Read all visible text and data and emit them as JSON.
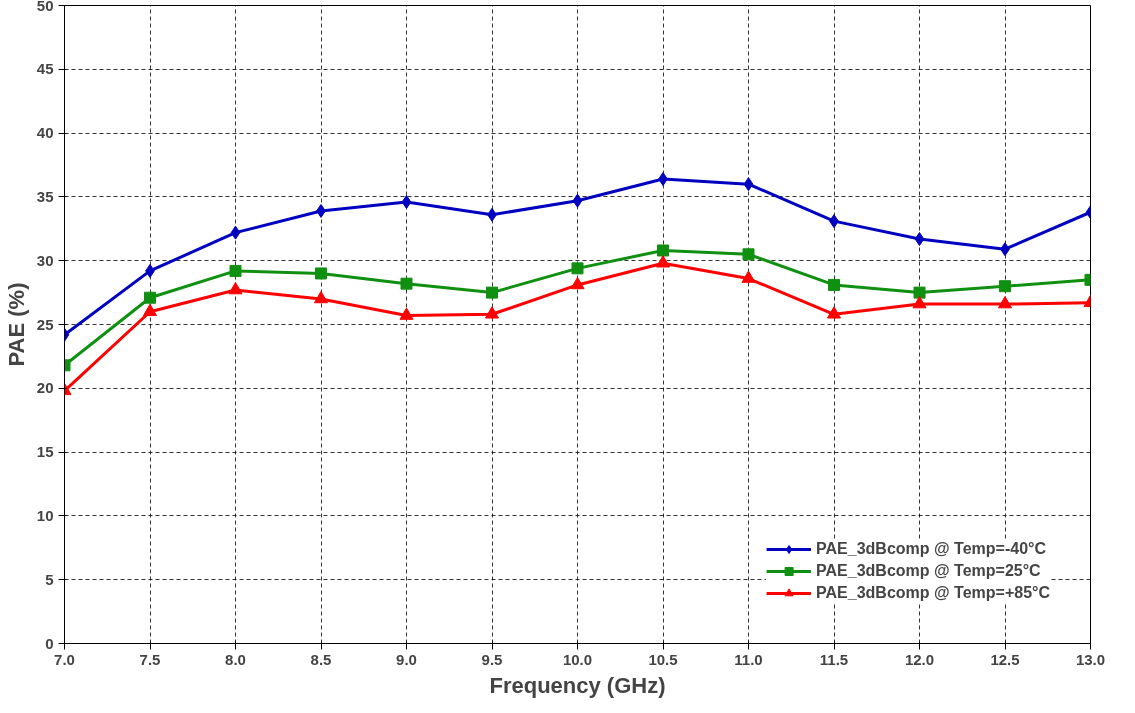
{
  "chart_data": {
    "type": "line",
    "xlabel": "Frequency (GHz)",
    "ylabel": "PAE (%)",
    "x": [
      7.0,
      7.5,
      8.0,
      8.5,
      9.0,
      9.5,
      10.0,
      10.5,
      11.0,
      11.5,
      12.0,
      12.5,
      13.0
    ],
    "xlim": [
      7.0,
      13.0
    ],
    "xticks": [
      {
        "value": 7.0,
        "label": "7.0"
      },
      {
        "value": 7.5,
        "label": "7.5"
      },
      {
        "value": 8.0,
        "label": "8.0"
      },
      {
        "value": 8.5,
        "label": "8.5"
      },
      {
        "value": 9.0,
        "label": "9.0"
      },
      {
        "value": 9.5,
        "label": "9.5"
      },
      {
        "value": 10.0,
        "label": "10.0"
      },
      {
        "value": 10.5,
        "label": "10.5"
      },
      {
        "value": 11.0,
        "label": "11.0"
      },
      {
        "value": 11.5,
        "label": "11.5"
      },
      {
        "value": 12.0,
        "label": "12.0"
      },
      {
        "value": 12.5,
        "label": "12.5"
      },
      {
        "value": 13.0,
        "label": "13.0"
      }
    ],
    "ylim": [
      0,
      50
    ],
    "yticks": [
      0,
      5,
      10,
      15,
      20,
      25,
      30,
      35,
      40,
      45,
      50
    ],
    "grid": true,
    "legend": "bottom right",
    "line_style": "solid",
    "series": [
      {
        "name": "PAE_3dBcomp @ Temp=-40°C",
        "color": "#0000c0",
        "marker": "diamond",
        "values": [
          24.2,
          29.2,
          32.2,
          33.9,
          34.6,
          33.6,
          34.7,
          36.4,
          36.0,
          33.1,
          31.7,
          30.9,
          33.8
        ]
      },
      {
        "name": "PAE_3dBcomp @ Temp=25°C",
        "color": "#109010",
        "marker": "square",
        "values": [
          21.8,
          27.1,
          29.2,
          29.0,
          28.2,
          27.5,
          29.4,
          30.8,
          30.5,
          28.1,
          27.5,
          28.0,
          28.5
        ]
      },
      {
        "name": "PAE_3dBcomp @ Temp=+85°C",
        "color": "#ff0000",
        "marker": "triangle",
        "values": [
          19.8,
          26.0,
          27.7,
          27.0,
          25.7,
          25.8,
          28.1,
          29.8,
          28.6,
          25.8,
          26.6,
          26.6,
          26.7
        ]
      }
    ]
  }
}
